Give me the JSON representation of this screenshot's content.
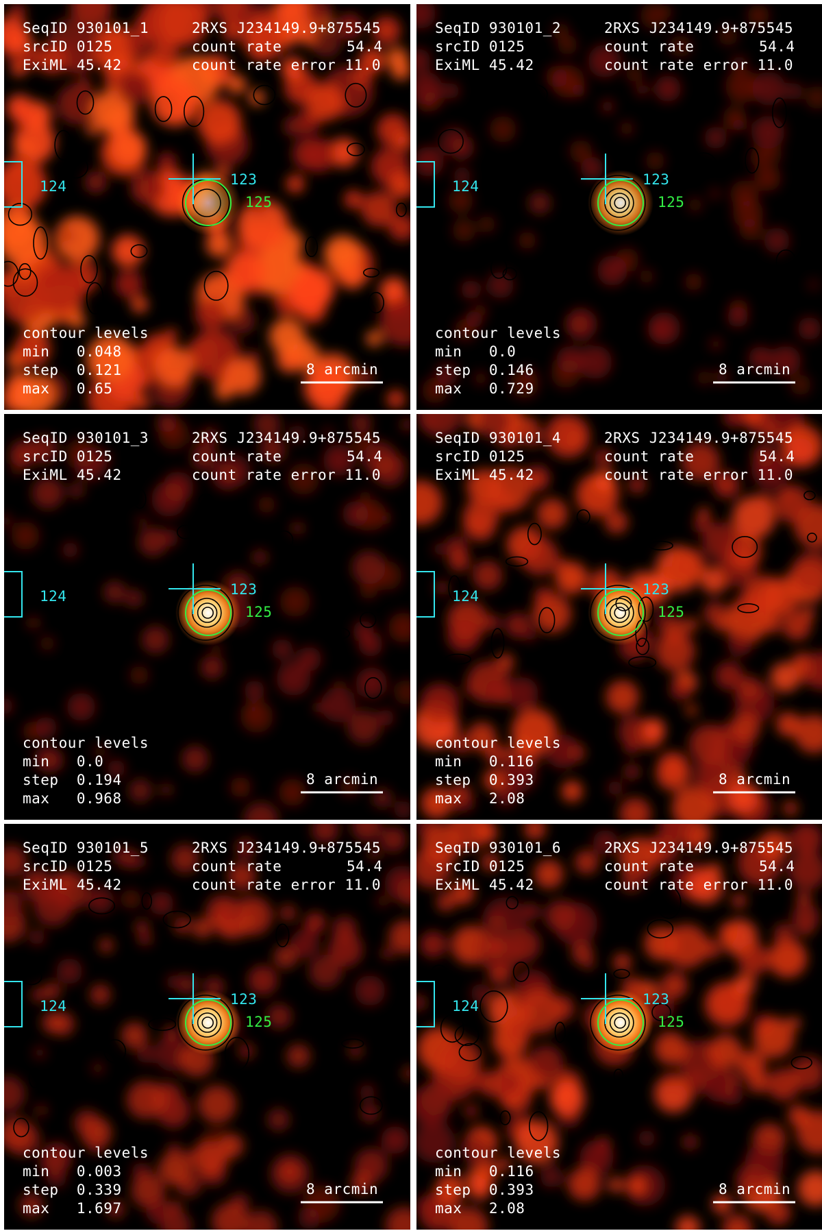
{
  "common": {
    "source_name": "2RXS J234149.9+875545",
    "src_id_label": "srcID",
    "src_id": "0125",
    "eximl_label": "ExiML",
    "eximl": "45.42",
    "count_rate_label": "count rate",
    "count_rate": "54.4",
    "count_rate_error_label": "count rate error",
    "count_rate_error": "11.0",
    "contour_title": "contour levels",
    "min_label": "min",
    "step_label": "step",
    "max_label": "max",
    "scale_label": "8 arcmin",
    "markers": {
      "cross": "123",
      "box": "124",
      "circle": "125"
    },
    "colors": {
      "cross": "#33e6ee",
      "circle": "#33ee44",
      "text": "#ffffff"
    }
  },
  "panels": [
    {
      "seqid": "SeqID 930101_1",
      "min": "0.048",
      "step": "0.121",
      "max": "0.65",
      "background_level": 0.75,
      "peak_level": 0.55
    },
    {
      "seqid": "SeqID 930101_2",
      "min": "0.0",
      "step": "0.146",
      "max": "0.729",
      "background_level": 0.15,
      "peak_level": 0.9
    },
    {
      "seqid": "SeqID 930101_3",
      "min": "0.0",
      "step": "0.194",
      "max": "0.968",
      "background_level": 0.2,
      "peak_level": 1.0
    },
    {
      "seqid": "SeqID 930101_4",
      "min": "0.116",
      "step": "0.393",
      "max": "2.08",
      "background_level": 0.55,
      "peak_level": 1.0
    },
    {
      "seqid": "SeqID 930101_5",
      "min": "0.003",
      "step": "0.339",
      "max": "1.697",
      "background_level": 0.35,
      "peak_level": 1.0
    },
    {
      "seqid": "SeqID 930101_6",
      "min": "0.116",
      "step": "0.393",
      "max": "2.08",
      "background_level": 0.55,
      "peak_level": 1.0
    }
  ]
}
